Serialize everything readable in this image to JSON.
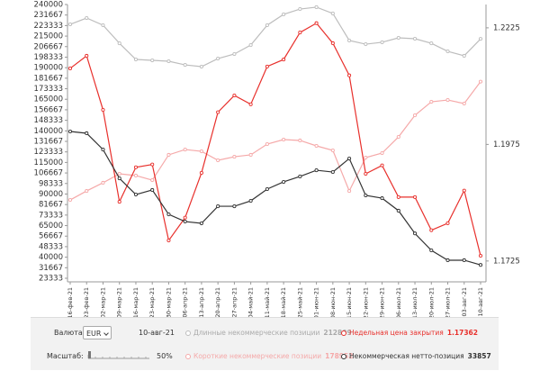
{
  "chart_data": {
    "type": "line",
    "categories": [
      "16-фев-21",
      "23-фев-21",
      "02-мар-21",
      "09-мар-21",
      "16-мар-21",
      "23-мар-21",
      "30-мар-21",
      "06-апр-21",
      "13-апр-21",
      "20-апр-21",
      "27-апр-21",
      "04-май-21",
      "11-май-21",
      "18-май-21",
      "25-май-21",
      "01-июн-21",
      "08-июн-21",
      "15-июн-21",
      "22-июн-21",
      "29-июн-21",
      "06-июл-21",
      "13-июл-21",
      "20-июл-21",
      "27-июл-21",
      "03-авг-21",
      "10-авг-21"
    ],
    "series": [
      {
        "name": "Длинные некоммерческие позиции",
        "color": "#bdbdbd",
        "values": [
          224300,
          229300,
          223600,
          209300,
          196500,
          195800,
          195100,
          192200,
          190800,
          197200,
          200800,
          207900,
          223600,
          232200,
          236400,
          237900,
          232900,
          211500,
          208600,
          210100,
          213600,
          212900,
          209300,
          202900,
          199400,
          212809
        ]
      },
      {
        "name": "Короткие некоммерческие позиции",
        "color": "#f5a9a9",
        "values": [
          85300,
          92400,
          98900,
          106000,
          104600,
          101000,
          121000,
          125200,
          123800,
          116700,
          119500,
          121000,
          129500,
          133100,
          132400,
          128100,
          124500,
          92400,
          118800,
          122400,
          135200,
          152300,
          163000,
          164400,
          161600,
          178952
        ]
      },
      {
        "name": "Недельная цена закрытия",
        "color": "#e8302c",
        "axis": "y2",
        "values": [
          1.2138,
          1.2165,
          1.2049,
          1.1852,
          1.1926,
          1.1932,
          1.1769,
          1.1818,
          1.1914,
          1.2044,
          1.208,
          1.2061,
          1.2142,
          1.2157,
          1.2215,
          1.2235,
          1.2192,
          1.2123,
          1.1912,
          1.193,
          1.1862,
          1.1862,
          1.1791,
          1.1806,
          1.1876,
          1.17362
        ]
      },
      {
        "name": "Некоммерческая нетто-позиция",
        "color": "#333333",
        "values": [
          139500,
          138100,
          125200,
          102400,
          89600,
          93200,
          73900,
          68200,
          66800,
          80300,
          80300,
          84600,
          93900,
          99600,
          103900,
          108800,
          107400,
          118100,
          88900,
          86700,
          76800,
          58800,
          45400,
          37600,
          37600,
          33857
        ]
      }
    ],
    "ylim": [
      23333,
      240000
    ],
    "yticks": [
      240000,
      231667,
      223333,
      215000,
      206667,
      198333,
      190000,
      181667,
      173333,
      165000,
      156667,
      148333,
      140000,
      131667,
      123333,
      115000,
      106667,
      98333,
      90000,
      81667,
      73333,
      65000,
      56667,
      48333,
      40000,
      31667,
      23333
    ],
    "y2lim": [
      1.1688,
      1.2275
    ],
    "y2ticks": [
      1.2225,
      1.1975,
      1.1725
    ],
    "grid": false
  },
  "controls": {
    "currency_label": "Валюта:",
    "currency": "EUR",
    "scale_label": "Масштаб:",
    "scale": "50%"
  }
}
